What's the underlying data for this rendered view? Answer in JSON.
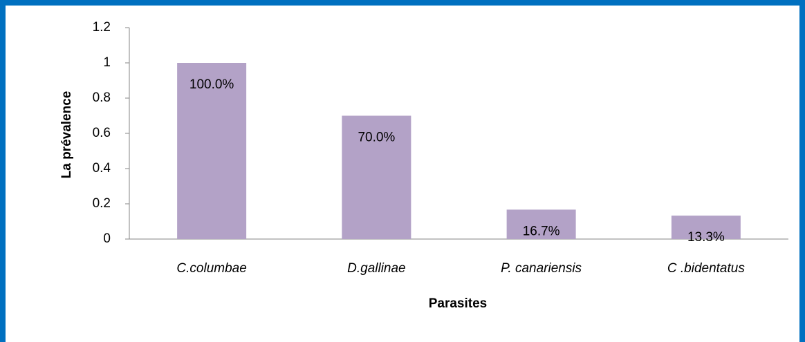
{
  "chart_data": {
    "type": "bar",
    "xlabel": "Parasites",
    "ylabel": "La prévalence",
    "categories": [
      "C.columbae",
      "D.gallinae",
      "P. canariensis",
      "C .bidentatus"
    ],
    "values": [
      1,
      0.7,
      0.167,
      0.133
    ],
    "value_labels": [
      "100.0%",
      "70.0%",
      "16.7%",
      "13.3%"
    ],
    "color": "#b3a2c7",
    "ylim": [
      0,
      1.2
    ],
    "yticks": [
      0,
      0.2,
      0.4,
      0.6,
      0.8,
      1,
      1.2
    ],
    "grid": false
  }
}
